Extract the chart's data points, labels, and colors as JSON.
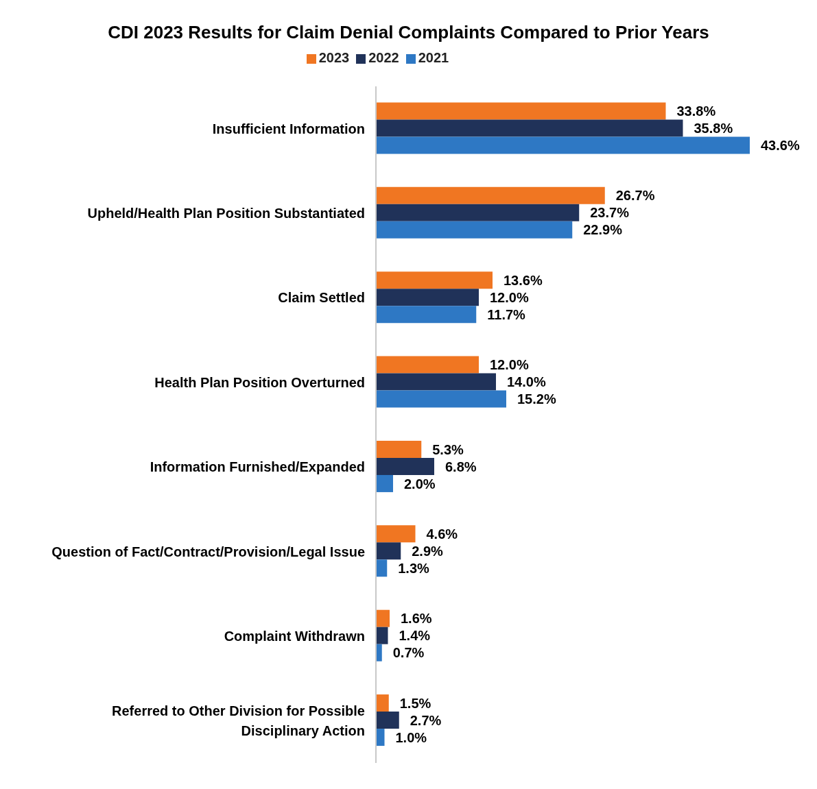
{
  "chart_data": {
    "type": "bar",
    "orientation": "horizontal",
    "title": "CDI 2023 Results for Claim Denial Complaints Compared to Prior Years",
    "categories": [
      "Insufficient Information",
      "Upheld/Health Plan Position Substantiated",
      "Claim Settled",
      "Health Plan Position Overturned",
      "Information Furnished/Expanded",
      "Question of Fact/Contract/Provision/Legal Issue",
      "Complaint Withdrawn",
      "Referred to Other Division for Possible Disciplinary Action"
    ],
    "series": [
      {
        "name": "2023",
        "color": "#f07622",
        "values": [
          33.8,
          26.7,
          13.6,
          12.0,
          5.3,
          4.6,
          1.6,
          1.5
        ],
        "value_labels": [
          "33.8%",
          "26.7%",
          "13.6%",
          "12.0%",
          "5.3%",
          "4.6%",
          "1.6%",
          "1.5%"
        ]
      },
      {
        "name": "2022",
        "color": "#203259",
        "values": [
          35.8,
          23.7,
          12.0,
          14.0,
          6.8,
          2.9,
          1.4,
          2.7
        ],
        "value_labels": [
          "35.8%",
          "23.7%",
          "12.0%",
          "14.0%",
          "6.8%",
          "2.9%",
          "1.4%",
          "2.7%"
        ]
      },
      {
        "name": "2021",
        "color": "#2e78c4",
        "values": [
          43.6,
          22.9,
          11.7,
          15.2,
          2.0,
          1.3,
          0.7,
          1.0
        ],
        "value_labels": [
          "43.6%",
          "22.9%",
          "11.7%",
          "15.2%",
          "2.0%",
          "1.3%",
          "0.7%",
          "1.0%"
        ]
      }
    ],
    "legend": "top",
    "tick_labels": "y"
  }
}
